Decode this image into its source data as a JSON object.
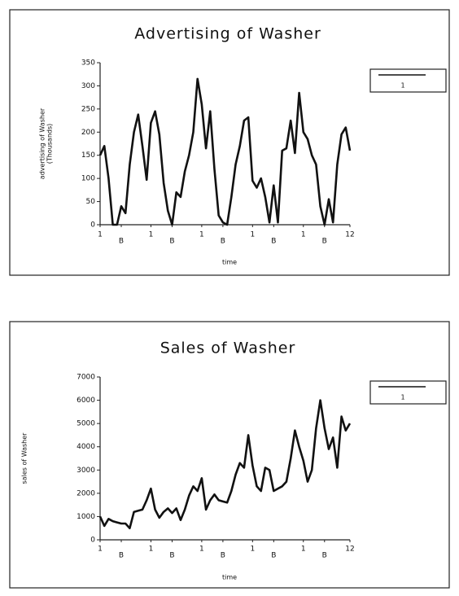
{
  "chart_data": [
    {
      "type": "line",
      "title": "Advertising of Washer",
      "xlabel": "time",
      "ylabel": [
        "advertising of Washer",
        "(Thousands)"
      ],
      "categories": [
        "1",
        null,
        null,
        null,
        null,
        "B",
        null,
        null,
        null,
        null,
        null,
        null,
        "1",
        null,
        null,
        null,
        null,
        "B",
        null,
        null,
        null,
        null,
        null,
        null,
        "1",
        null,
        null,
        null,
        null,
        "B",
        null,
        null,
        null,
        null,
        null,
        null,
        "1",
        null,
        null,
        null,
        null,
        "B",
        null,
        null,
        null,
        null,
        null,
        null,
        "1",
        null,
        null,
        null,
        null,
        "B",
        null,
        null,
        null,
        null,
        null,
        "12"
      ],
      "series": [
        {
          "name": "1",
          "color": "#111111",
          "values": [
            150,
            170,
            100,
            0,
            0,
            40,
            25,
            130,
            200,
            238,
            170,
            97,
            220,
            245,
            195,
            90,
            30,
            0,
            70,
            60,
            115,
            150,
            200,
            315,
            260,
            165,
            245,
            120,
            20,
            5,
            0,
            60,
            130,
            170,
            225,
            232,
            95,
            80,
            100,
            60,
            5,
            85,
            5,
            160,
            165,
            225,
            155,
            285,
            200,
            185,
            150,
            130,
            40,
            0,
            55,
            5,
            130,
            195,
            210,
            160
          ]
        }
      ],
      "ylim": [
        0,
        350
      ],
      "yticks": [
        0,
        50,
        100,
        150,
        200,
        250,
        300,
        350
      ]
    },
    {
      "type": "line",
      "title": "Sales of Washer",
      "xlabel": "time",
      "ylabel": [
        "sales of Washer"
      ],
      "categories": [
        "1",
        null,
        null,
        null,
        null,
        "B",
        null,
        null,
        null,
        null,
        null,
        null,
        "1",
        null,
        null,
        null,
        null,
        "B",
        null,
        null,
        null,
        null,
        null,
        null,
        "1",
        null,
        null,
        null,
        null,
        "B",
        null,
        null,
        null,
        null,
        null,
        null,
        "1",
        null,
        null,
        null,
        null,
        "B",
        null,
        null,
        null,
        null,
        null,
        null,
        "1",
        null,
        null,
        null,
        null,
        "B",
        null,
        null,
        null,
        null,
        null,
        "12"
      ],
      "series": [
        {
          "name": "1",
          "color": "#111111",
          "values": [
            1000,
            600,
            900,
            800,
            750,
            700,
            700,
            500,
            1200,
            1250,
            1300,
            1700,
            2200,
            1300,
            950,
            1200,
            1350,
            1150,
            1350,
            850,
            1300,
            1900,
            2300,
            2100,
            2650,
            1300,
            1700,
            1950,
            1700,
            1650,
            1600,
            2100,
            2800,
            3300,
            3100,
            4500,
            3200,
            2300,
            2100,
            3100,
            3000,
            2100,
            2200,
            2300,
            2500,
            3500,
            4700,
            4000,
            3400,
            2500,
            3000,
            4800,
            6000,
            4800,
            3900,
            4400,
            3100,
            5300,
            4700,
            5000
          ]
        }
      ],
      "ylim": [
        0,
        7000
      ],
      "yticks": [
        0,
        1000,
        2000,
        3000,
        4000,
        5000,
        6000,
        7000
      ]
    }
  ]
}
